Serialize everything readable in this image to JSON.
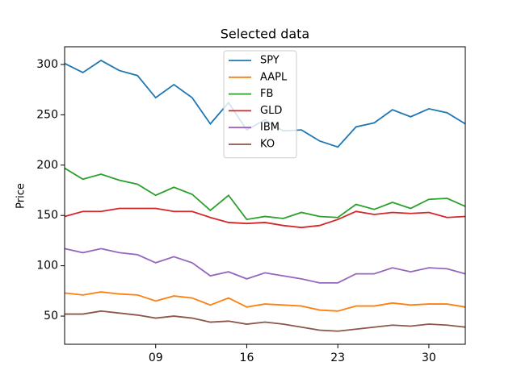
{
  "chart_data": {
    "type": "line",
    "title": "Selected data",
    "ylabel": "Price",
    "x": [
      2,
      3.4,
      4.8,
      6.2,
      7.6,
      9,
      10.4,
      11.8,
      13.2,
      14.6,
      16,
      17.4,
      18.8,
      20.2,
      21.6,
      23,
      24.4,
      25.8,
      27.2,
      28.6,
      30,
      31.4,
      32.8
    ],
    "xlim": [
      2,
      32.8
    ],
    "xticks": [
      {
        "value": 9,
        "label": "09"
      },
      {
        "value": 16,
        "label": "16"
      },
      {
        "value": 23,
        "label": "23"
      },
      {
        "value": 30,
        "label": "30"
      }
    ],
    "ylim": [
      22,
      317.6
    ],
    "yticks": [
      50,
      100,
      150,
      200,
      250,
      300
    ],
    "legend": "upper center",
    "series": [
      {
        "name": "SPY",
        "color": "#1f77b4",
        "values": [
          301,
          292,
          304,
          294,
          289,
          267,
          280,
          267,
          241,
          262,
          235,
          245,
          234,
          235,
          224,
          218,
          238,
          242,
          255,
          248,
          256,
          252,
          241
        ]
      },
      {
        "name": "AAPL",
        "color": "#ff7f0e",
        "values": [
          73,
          71,
          74,
          72,
          71,
          65,
          70,
          68,
          61,
          68,
          59,
          62,
          61,
          60,
          56,
          55,
          60,
          60,
          63,
          61,
          62,
          62,
          59
        ]
      },
      {
        "name": "FB",
        "color": "#2ca02c",
        "values": [
          197,
          186,
          191,
          185,
          181,
          170,
          178,
          171,
          155,
          170,
          146,
          149,
          147,
          153,
          149,
          148,
          161,
          156,
          163,
          157,
          166,
          167,
          159
        ]
      },
      {
        "name": "GLD",
        "color": "#d62728",
        "values": [
          149,
          154,
          154,
          157,
          157,
          157,
          154,
          154,
          148,
          143,
          142,
          143,
          140,
          138,
          140,
          146,
          154,
          151,
          153,
          152,
          153,
          148,
          149
        ]
      },
      {
        "name": "IBM",
        "color": "#9467bd",
        "values": [
          117,
          113,
          117,
          113,
          111,
          103,
          109,
          103,
          90,
          94,
          87,
          93,
          90,
          87,
          83,
          83,
          92,
          92,
          98,
          94,
          98,
          97,
          92
        ]
      },
      {
        "name": "KO",
        "color": "#8c564b",
        "values": [
          52,
          52,
          55,
          53,
          51,
          48,
          50,
          48,
          44,
          45,
          42,
          44,
          42,
          39,
          36,
          35,
          37,
          39,
          41,
          40,
          42,
          41,
          39
        ]
      }
    ]
  }
}
